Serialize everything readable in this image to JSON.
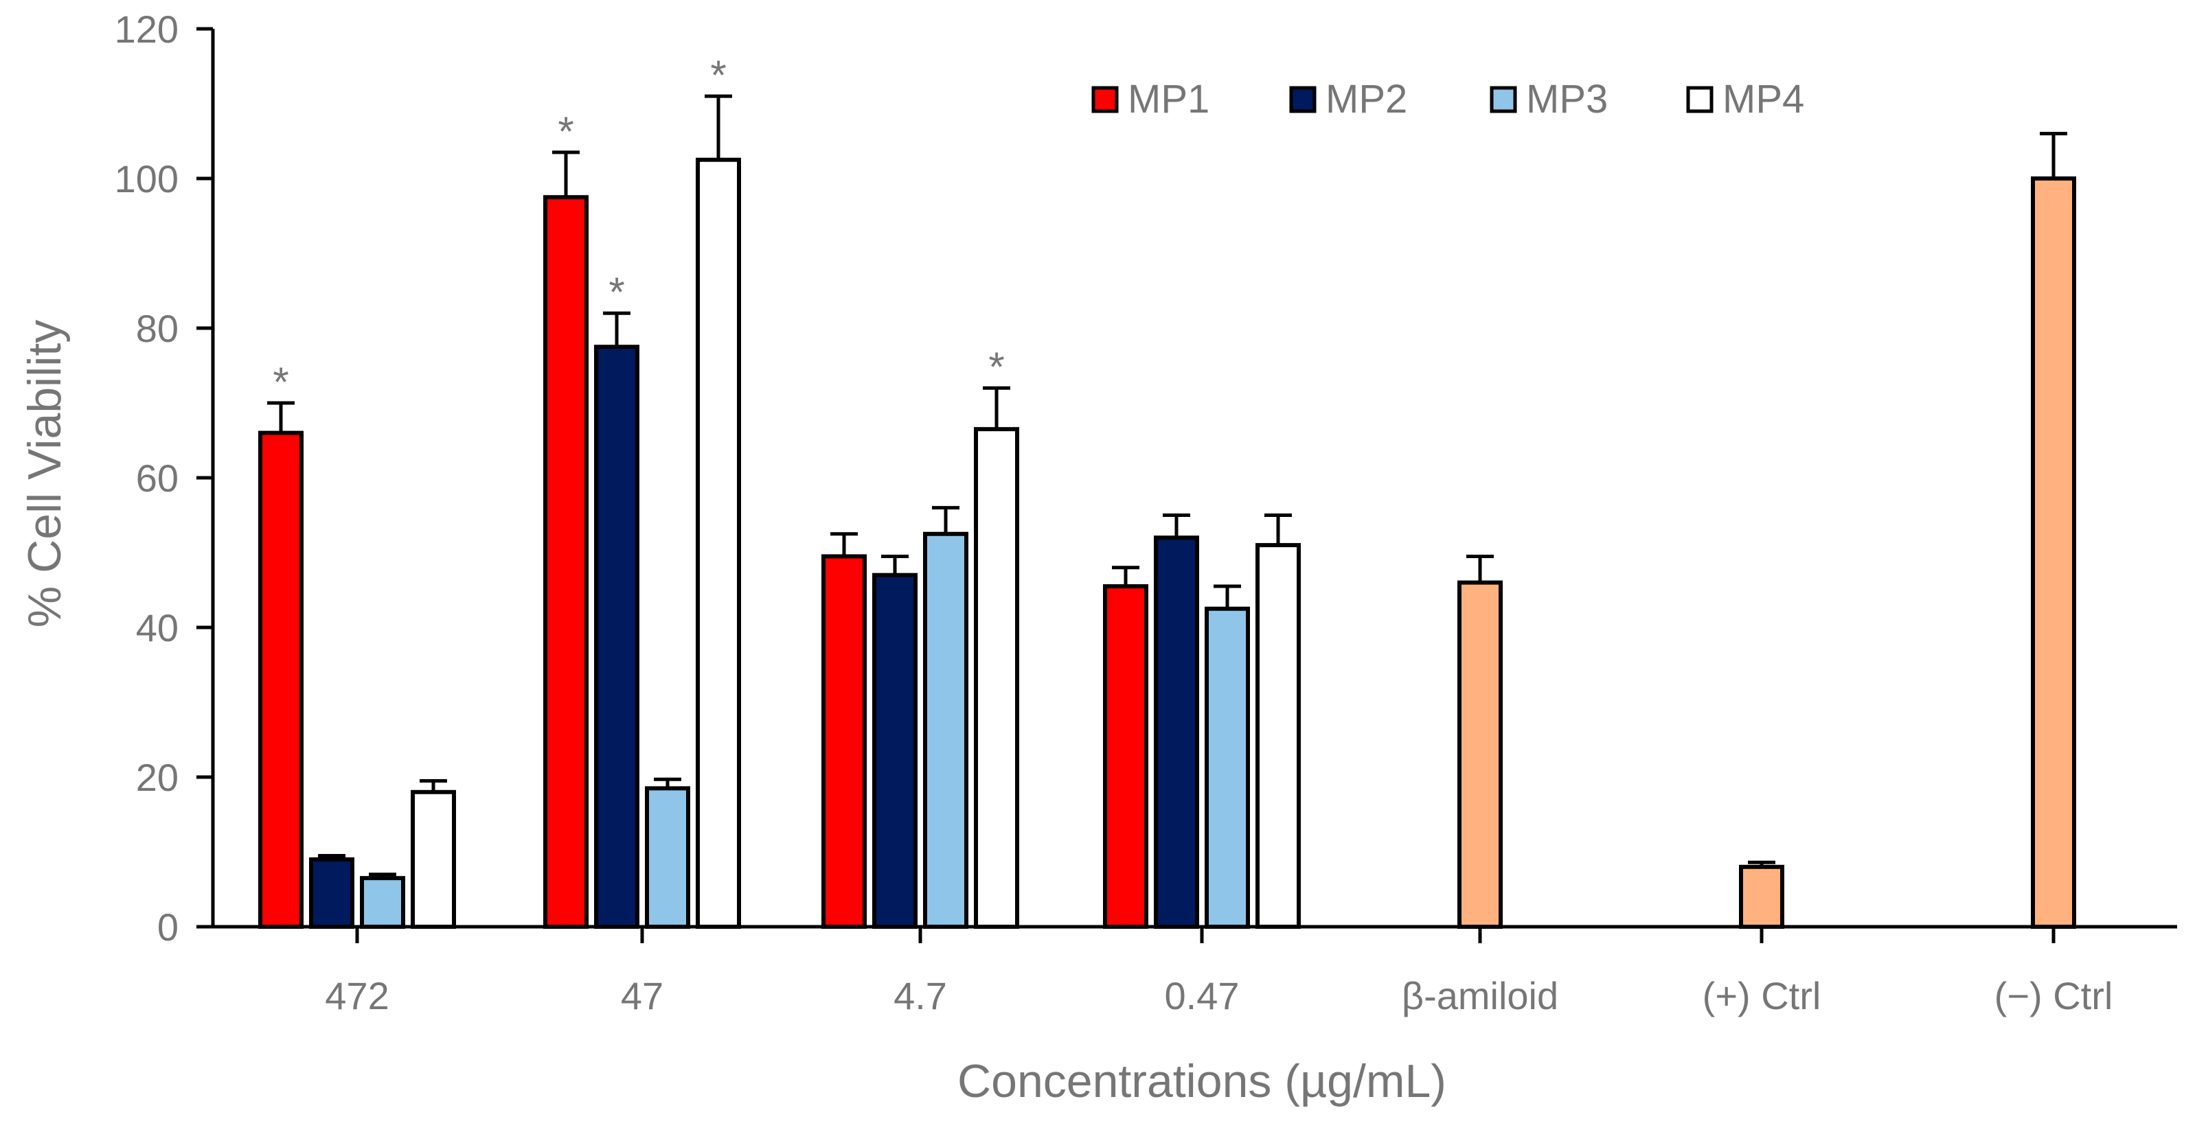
{
  "chart_data": {
    "type": "bar",
    "title": "",
    "xlabel": "Concentrations (µg/mL)",
    "ylabel": "% Cell Viability",
    "ylim": [
      0,
      120
    ],
    "yticks": [
      0,
      20,
      40,
      60,
      80,
      100,
      120
    ],
    "grid": false,
    "legend_position": "top-right",
    "categories": [
      "472",
      "47",
      "4.7",
      "0.47",
      "β-amiloid",
      "(+) Ctrl",
      "(−) Ctrl"
    ],
    "series": [
      {
        "name": "MP1",
        "color": "#ff0000",
        "values": [
          66,
          97.5,
          49.5,
          45.5,
          null,
          null,
          null
        ],
        "errors": [
          4,
          6,
          3,
          2.5,
          null,
          null,
          null
        ]
      },
      {
        "name": "MP2",
        "color": "#001a5e",
        "values": [
          9,
          77.5,
          47,
          52,
          null,
          null,
          null
        ],
        "errors": [
          0.5,
          4.5,
          2.5,
          3,
          null,
          null,
          null
        ]
      },
      {
        "name": "MP3",
        "color": "#8fc5e8",
        "values": [
          6.5,
          18.5,
          52.5,
          42.5,
          null,
          null,
          null
        ],
        "errors": [
          0.5,
          1.2,
          3.5,
          3,
          null,
          null,
          null
        ]
      },
      {
        "name": "MP4",
        "color": "#ffffff",
        "values": [
          18,
          102.5,
          66.5,
          51,
          null,
          null,
          null
        ],
        "errors": [
          1.5,
          8.5,
          5.5,
          4,
          null,
          null,
          null
        ]
      }
    ],
    "controls": {
      "color": "#ffb27f",
      "items": [
        {
          "category": "β-amiloid",
          "value": 46,
          "error": 3.5
        },
        {
          "category": "(+) Ctrl",
          "value": 8,
          "error": 0.6
        },
        {
          "category": "(−) Ctrl",
          "value": 100,
          "error": 6
        }
      ]
    },
    "annotations": [
      {
        "text": "*",
        "category": "472",
        "series": "MP1"
      },
      {
        "text": "*",
        "category": "47",
        "series": "MP1"
      },
      {
        "text": "*",
        "category": "47",
        "series": "MP2"
      },
      {
        "text": "*",
        "category": "47",
        "series": "MP4"
      },
      {
        "text": "*",
        "category": "4.7",
        "series": "MP4"
      }
    ]
  }
}
